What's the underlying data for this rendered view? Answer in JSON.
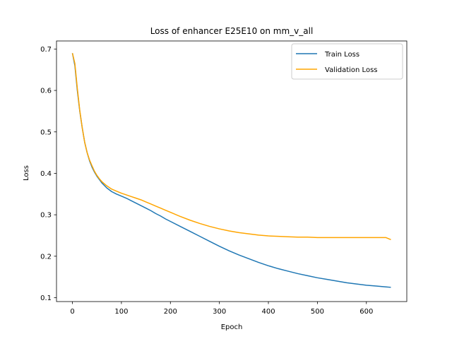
{
  "chart_data": {
    "type": "line",
    "title": "Loss of enhancer E25E10 on mm_v_all",
    "xlabel": "Epoch",
    "ylabel": "Loss",
    "xlim": [
      -32.5,
      682.5
    ],
    "ylim": [
      0.0906,
      0.7194
    ],
    "xticks": [
      0,
      100,
      200,
      300,
      400,
      500,
      600
    ],
    "yticks": [
      0.1,
      0.2,
      0.3,
      0.4,
      0.5,
      0.6,
      0.7
    ],
    "grid": false,
    "legend_position": "top-right",
    "series": [
      {
        "name": "Train Loss",
        "color": "#1f77b4",
        "x": [
          0,
          5,
          10,
          15,
          20,
          25,
          30,
          35,
          40,
          45,
          50,
          55,
          60,
          70,
          80,
          90,
          100,
          110,
          120,
          130,
          140,
          150,
          160,
          170,
          180,
          190,
          200,
          220,
          240,
          260,
          280,
          300,
          320,
          340,
          360,
          380,
          400,
          420,
          440,
          460,
          480,
          500,
          520,
          540,
          560,
          580,
          600,
          620,
          640,
          650
        ],
        "y": [
          0.69,
          0.66,
          0.6,
          0.55,
          0.51,
          0.475,
          0.45,
          0.43,
          0.415,
          0.403,
          0.393,
          0.385,
          0.377,
          0.365,
          0.356,
          0.35,
          0.345,
          0.34,
          0.334,
          0.328,
          0.322,
          0.316,
          0.31,
          0.303,
          0.297,
          0.29,
          0.284,
          0.272,
          0.26,
          0.248,
          0.236,
          0.224,
          0.213,
          0.203,
          0.194,
          0.185,
          0.177,
          0.17,
          0.164,
          0.158,
          0.153,
          0.148,
          0.144,
          0.14,
          0.136,
          0.133,
          0.13,
          0.128,
          0.126,
          0.125
        ]
      },
      {
        "name": "Validation Loss",
        "color": "#ffa500",
        "x": [
          0,
          5,
          10,
          15,
          20,
          25,
          30,
          35,
          40,
          45,
          50,
          55,
          60,
          70,
          80,
          90,
          100,
          110,
          120,
          130,
          140,
          150,
          160,
          170,
          180,
          190,
          200,
          220,
          240,
          260,
          280,
          300,
          320,
          340,
          360,
          380,
          400,
          420,
          440,
          460,
          480,
          500,
          520,
          540,
          560,
          580,
          600,
          620,
          640,
          650
        ],
        "y": [
          0.69,
          0.665,
          0.605,
          0.552,
          0.51,
          0.475,
          0.45,
          0.432,
          0.418,
          0.405,
          0.395,
          0.387,
          0.38,
          0.37,
          0.362,
          0.357,
          0.352,
          0.348,
          0.344,
          0.34,
          0.336,
          0.331,
          0.326,
          0.321,
          0.316,
          0.311,
          0.306,
          0.296,
          0.287,
          0.279,
          0.272,
          0.266,
          0.261,
          0.257,
          0.254,
          0.251,
          0.249,
          0.248,
          0.247,
          0.246,
          0.246,
          0.245,
          0.245,
          0.245,
          0.245,
          0.245,
          0.245,
          0.245,
          0.245,
          0.24
        ]
      }
    ]
  }
}
